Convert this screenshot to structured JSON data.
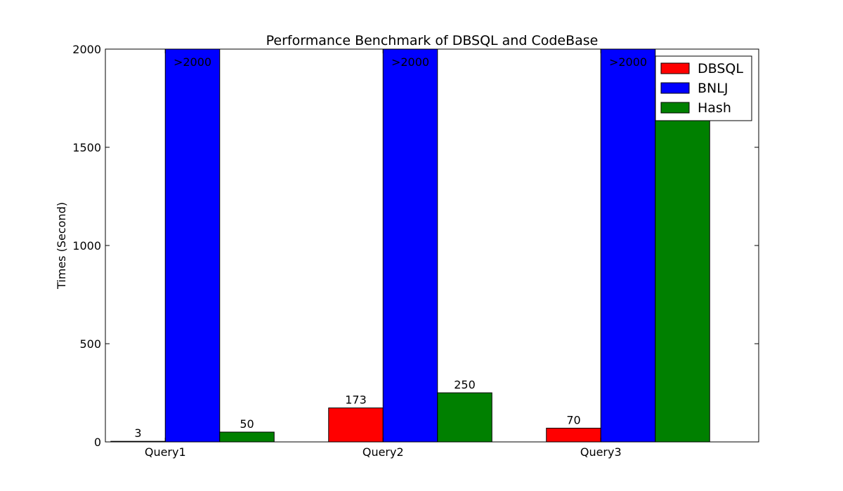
{
  "chart_data": {
    "type": "bar",
    "title": "Performance Benchmark of DBSQL and CodeBase",
    "xlabel": "",
    "ylabel": "Times (Second)",
    "ylim": [
      0,
      2000
    ],
    "yticks": [
      0,
      500,
      1000,
      1500,
      2000
    ],
    "categories": [
      "Query1",
      "Query2",
      "Query3"
    ],
    "series": [
      {
        "name": "DBSQL",
        "color": "#ff0000",
        "values": [
          3,
          173,
          70
        ],
        "labels": [
          "3",
          "173",
          "70"
        ]
      },
      {
        "name": "BNLJ",
        "color": "#0000ff",
        "values": [
          2000,
          2000,
          2000
        ],
        "labels": [
          ">2000",
          ">2000",
          ">2000"
        ]
      },
      {
        "name": "Hash",
        "color": "#008000",
        "values": [
          50,
          250,
          1800
        ],
        "labels": [
          "50",
          "250",
          ""
        ]
      }
    ],
    "legend_position": "top-right",
    "grid": false
  }
}
